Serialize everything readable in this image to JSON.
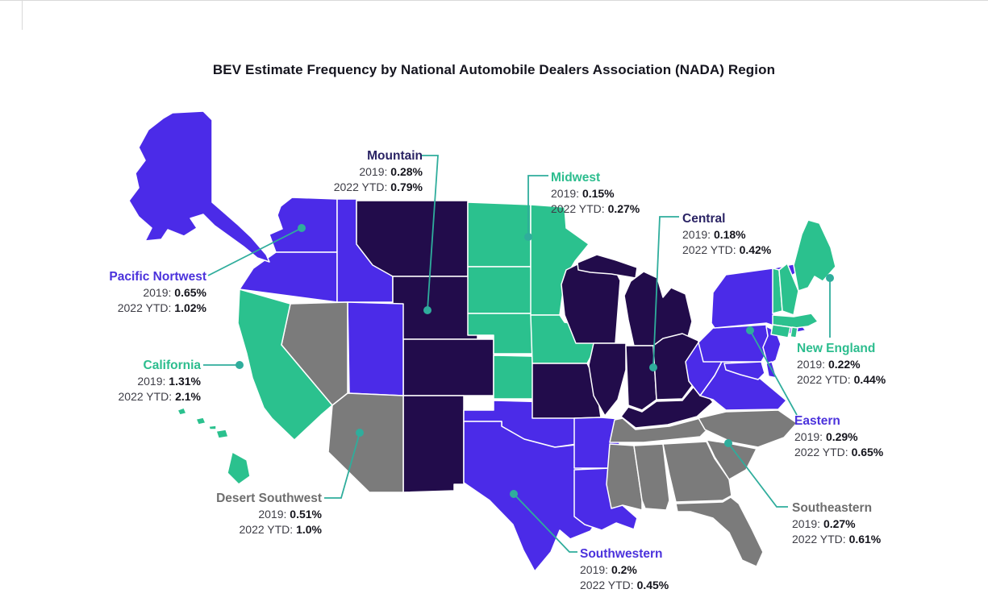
{
  "title": "BEV Estimate Frequency by National Automobile Dealers Association (NADA) Region",
  "labels": {
    "y2019": "2019:",
    "ytd2022": "2022 YTD:"
  },
  "colors": {
    "purple": "#4B2BE8",
    "dark": "#220C4B",
    "green": "#2BC18E",
    "gray": "#7B7B7B",
    "leader": "#2FAD9C",
    "map_stroke": "#FFFFFF",
    "title_text": "#15151F",
    "background": "#FFFFFF"
  },
  "label_colors": {
    "purple": "#4B32DC",
    "dark": "#2A2364",
    "green": "#2CBD8E",
    "gray": "#6E6E6E"
  },
  "regions": [
    {
      "id": "mountain",
      "name": "Mountain",
      "label_color": "dark",
      "v2019": "0.28%",
      "v2022": "0.79%"
    },
    {
      "id": "midwest",
      "name": "Midwest",
      "label_color": "green",
      "v2019": "0.15%",
      "v2022": "0.27%"
    },
    {
      "id": "central",
      "name": "Central",
      "label_color": "dark",
      "v2019": "0.18%",
      "v2022": "0.42%"
    },
    {
      "id": "pacific-northwest",
      "name": "Pacific Nortwest",
      "label_color": "purple",
      "v2019": "0.65%",
      "v2022": "1.02%"
    },
    {
      "id": "california",
      "name": "California",
      "label_color": "green",
      "v2019": "1.31%",
      "v2022": "2.1%"
    },
    {
      "id": "new-england",
      "name": "New England",
      "label_color": "green",
      "v2019": "0.22%",
      "v2022": "0.44%"
    },
    {
      "id": "eastern",
      "name": "Eastern",
      "label_color": "purple",
      "v2019": "0.29%",
      "v2022": "0.65%"
    },
    {
      "id": "southeastern",
      "name": "Southeastern",
      "label_color": "gray",
      "v2019": "0.27%",
      "v2022": "0.61%"
    },
    {
      "id": "desert-southwest",
      "name": "Desert Southwest",
      "label_color": "gray",
      "v2019": "0.51%",
      "v2022": "1.0%"
    },
    {
      "id": "southwestern",
      "name": "Southwestern",
      "label_color": "purple",
      "v2019": "0.2%",
      "v2022": "0.45%"
    }
  ],
  "state_colors": {
    "AK": "purple",
    "WA": "purple",
    "OR": "purple",
    "ID": "purple",
    "UT": "purple",
    "TX": "purple",
    "OK": "purple",
    "AR": "purple",
    "LA": "purple",
    "NY": "purple",
    "LI": "purple",
    "PA": "purple",
    "NJ": "purple",
    "MD": "purple",
    "DE": "purple",
    "WV": "purple",
    "VA": "purple",
    "MT": "dark",
    "WY": "dark",
    "CO": "dark",
    "NM": "dark",
    "WI": "dark",
    "MI_UP": "dark",
    "MI": "dark",
    "IL": "dark",
    "IN": "dark",
    "OH": "dark",
    "KY": "dark",
    "MO": "dark",
    "CA": "green",
    "HI1": "green",
    "HI2": "green",
    "HI3": "green",
    "HI4": "green",
    "HI5": "green",
    "MN": "green",
    "ND": "green",
    "SD": "green",
    "NE": "green",
    "KS": "green",
    "IA": "green",
    "VT": "green",
    "NH": "green",
    "ME": "green",
    "MA": "green",
    "CT": "green",
    "RI": "green",
    "NV": "gray",
    "AZ": "gray",
    "TN": "gray",
    "NC": "gray",
    "SC": "gray",
    "GA": "gray",
    "AL": "gray",
    "MS": "gray",
    "FL": "gray"
  },
  "chart_data": {
    "type": "choropleth_map",
    "title": "BEV Estimate Frequency by National Automobile Dealers Association (NADA) Region",
    "unit": "percent",
    "categories": [
      "Mountain",
      "Midwest",
      "Central",
      "Pacific Nortwest",
      "California",
      "New England",
      "Eastern",
      "Southeastern",
      "Desert Southwest",
      "Southwestern"
    ],
    "series": [
      {
        "name": "2019",
        "values": [
          0.28,
          0.15,
          0.18,
          0.65,
          1.31,
          0.22,
          0.29,
          0.27,
          0.51,
          0.2
        ]
      },
      {
        "name": "2022 YTD",
        "values": [
          0.79,
          0.27,
          0.42,
          1.02,
          2.1,
          0.44,
          0.65,
          0.61,
          1.0,
          0.45
        ]
      }
    ],
    "region_states": {
      "Mountain": [
        "MT",
        "WY",
        "CO",
        "NM"
      ],
      "Midwest": [
        "ND",
        "SD",
        "NE",
        "KS",
        "MN",
        "IA"
      ],
      "Central": [
        "MO",
        "IL",
        "WI",
        "MI",
        "IN",
        "OH",
        "KY"
      ],
      "Pacific Nortwest": [
        "AK",
        "WA",
        "OR",
        "ID",
        "UT"
      ],
      "California": [
        "CA",
        "HI"
      ],
      "New England": [
        "ME",
        "NH",
        "VT",
        "MA",
        "CT",
        "RI"
      ],
      "Eastern": [
        "NY",
        "PA",
        "NJ",
        "MD",
        "DE",
        "WV",
        "VA"
      ],
      "Southeastern": [
        "TN",
        "NC",
        "SC",
        "GA",
        "AL",
        "MS",
        "FL"
      ],
      "Desert Southwest": [
        "NV",
        "AZ"
      ],
      "Southwestern": [
        "TX",
        "OK",
        "AR",
        "LA"
      ]
    },
    "legend_position": "none",
    "grid": false
  }
}
